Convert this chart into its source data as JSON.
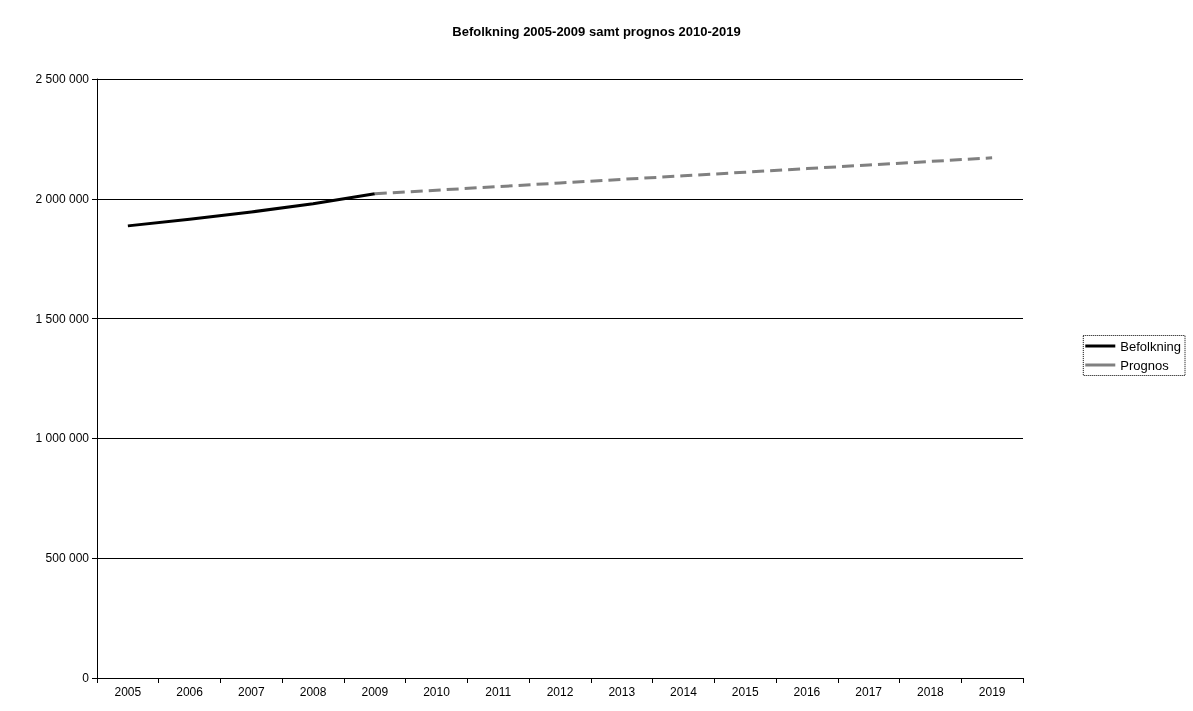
{
  "chart_data": {
    "type": "line",
    "title": "Befolkning 2005-2009 samt prognos 2010-2019",
    "categories": [
      "2005",
      "2006",
      "2007",
      "2008",
      "2009",
      "2010",
      "2011",
      "2012",
      "2013",
      "2014",
      "2015",
      "2016",
      "2017",
      "2018",
      "2019"
    ],
    "series": [
      {
        "name": "Befolkning",
        "color": "#000000",
        "line_style": "solid",
        "values": [
          1887000,
          1915000,
          1945000,
          1979000,
          2021000,
          null,
          null,
          null,
          null,
          null,
          null,
          null,
          null,
          null,
          null
        ]
      },
      {
        "name": "Prognos",
        "color": "#808080",
        "line_style": "dashed",
        "values": [
          null,
          null,
          null,
          null,
          2021000,
          2036000,
          2051000,
          2066000,
          2081000,
          2096000,
          2111000,
          2126000,
          2141000,
          2156000,
          2171000
        ]
      }
    ],
    "ylim": [
      0,
      2500000
    ],
    "yticks": [
      {
        "value": 0,
        "label": "0"
      },
      {
        "value": 500000,
        "label": "500 000"
      },
      {
        "value": 1000000,
        "label": "1 000 000"
      },
      {
        "value": 1500000,
        "label": "1 500 000"
      },
      {
        "value": 2000000,
        "label": "2 000 000"
      },
      {
        "value": 2500000,
        "label": "2 500 000"
      }
    ],
    "grid": "y",
    "legend": "right",
    "marker": "none"
  }
}
